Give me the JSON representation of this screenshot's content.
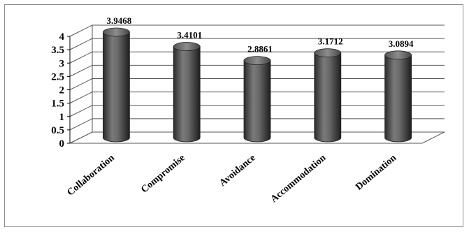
{
  "chart_data": {
    "type": "bar",
    "style": "3d-cylinder",
    "categories": [
      "Collaboration",
      "Compromise",
      "Avoidance",
      "Accommodation",
      "Domination"
    ],
    "values": [
      3.9468,
      3.4101,
      2.8861,
      3.1712,
      3.0894
    ],
    "data_labels": [
      "3.9468",
      "3.4101",
      "2.8861",
      "3.1712",
      "3.0894"
    ],
    "y_ticks": [
      "0",
      "0.5",
      "1",
      "1.5",
      "2",
      "2.5",
      "3",
      "3.5",
      "4"
    ],
    "ylim": [
      0,
      4
    ],
    "grid": true,
    "legend": "none",
    "bar_color": "#5a5a5a"
  }
}
